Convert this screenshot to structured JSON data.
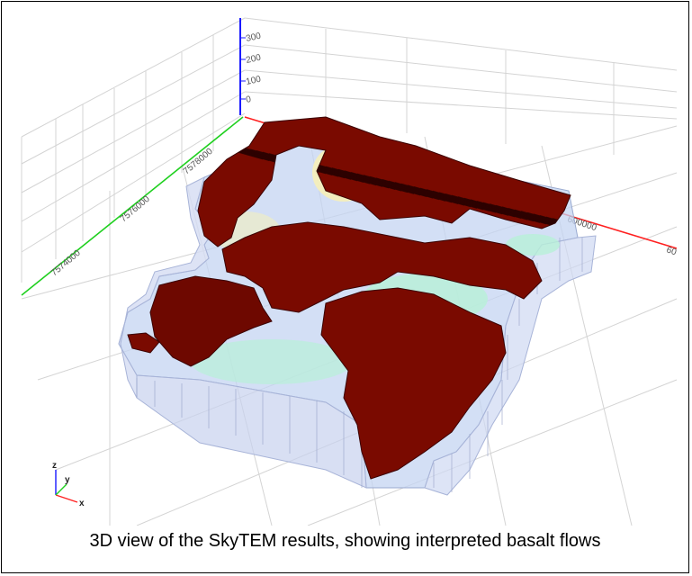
{
  "caption": "3D view of the SkyTEM results, showing interpreted basalt flows",
  "axes": {
    "z_ticks": [
      "300",
      "200",
      "100",
      "0"
    ],
    "y_ticks": [
      "7578000",
      "7576000",
      "7574000"
    ],
    "x_ticks": [
      "600000",
      "60"
    ],
    "orientation": {
      "z": "z",
      "y": "y",
      "x": "x"
    }
  },
  "colors": {
    "z_axis": "#1a1aff",
    "x_axis": "#ff2020",
    "y_axis": "#20d020",
    "basalt": "#7a0a00",
    "basalt_edge": "#3a0300",
    "resistivity_low": "#b8c8f4",
    "resistivity_mid": "#b8f0d8",
    "resistivity_high": "#f6f0b8"
  }
}
